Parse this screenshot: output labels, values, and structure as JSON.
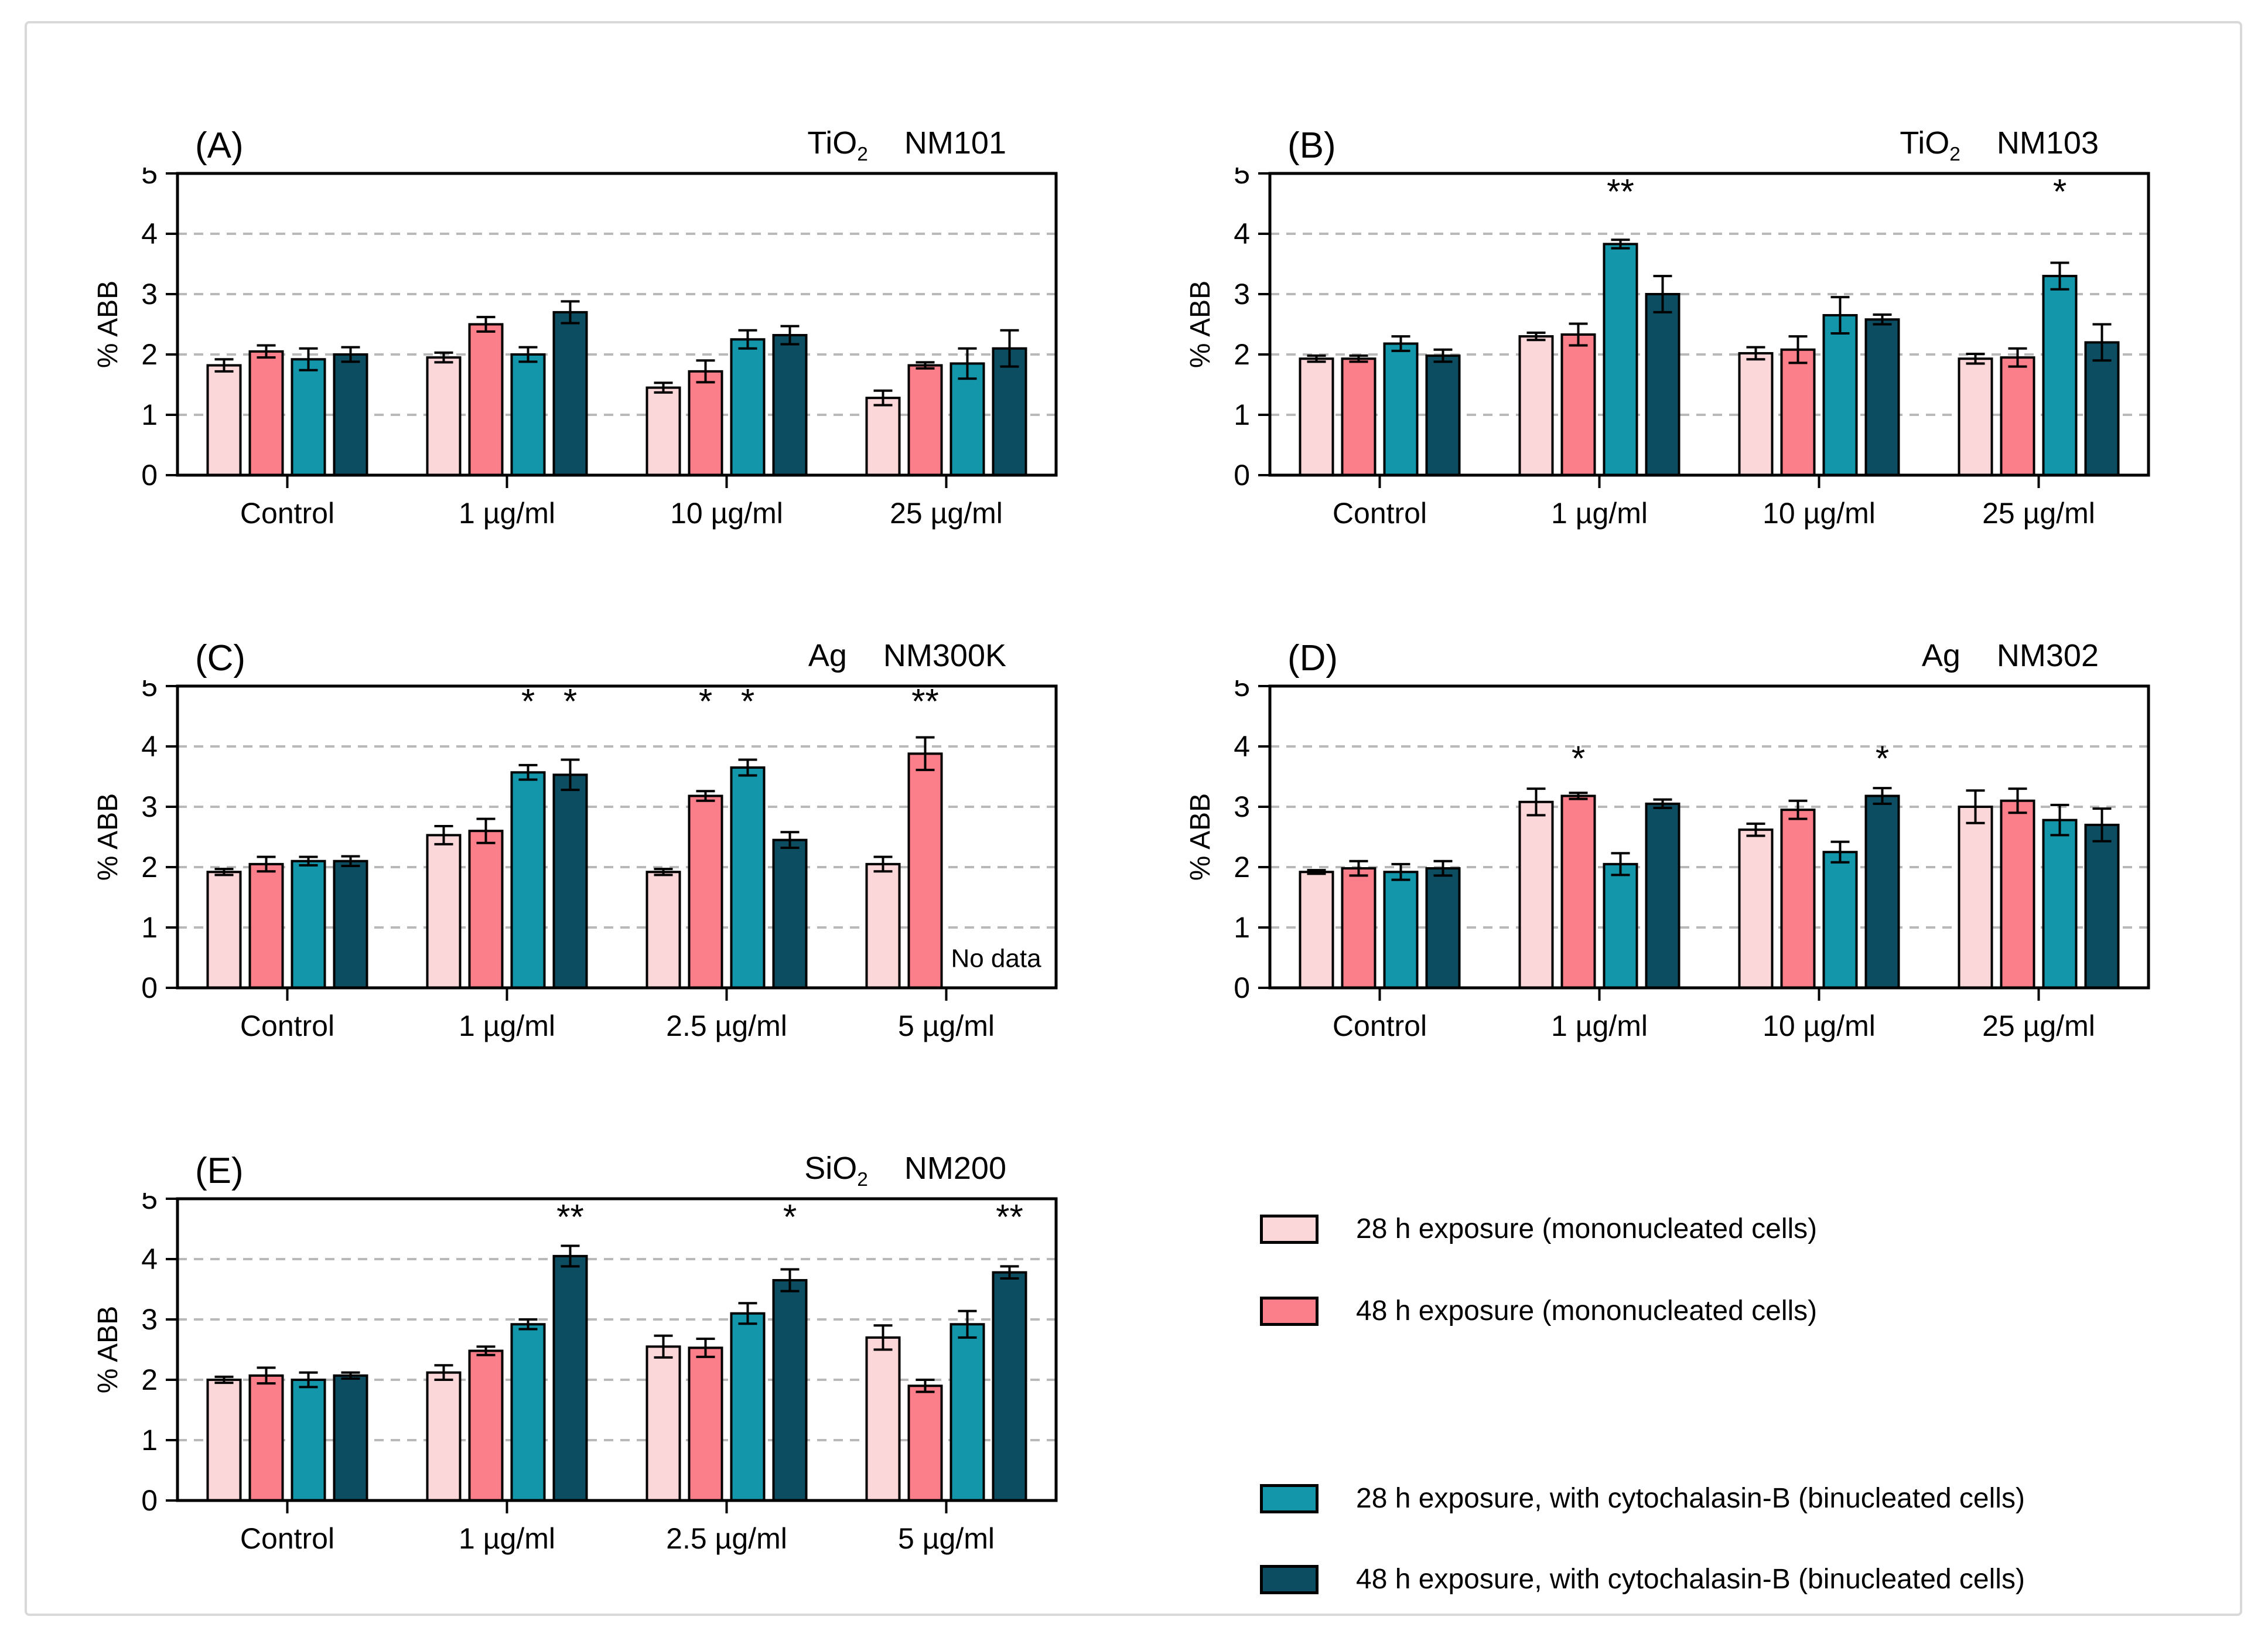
{
  "page": {
    "background": "#ffffff",
    "card_border": "#d9d9d9"
  },
  "legend": {
    "items": [
      {
        "label": "28 h exposure (mononucleated cells)",
        "color": "#FBD7DA"
      },
      {
        "label": "48 h exposure (mononucleated cells)",
        "color": "#FA7F8A"
      },
      {
        "label": "28 h exposure, with cytochalasin-B (binucleated cells)",
        "color": "#1496AA"
      },
      {
        "label": "48 h exposure, with cytochalasin-B (binucleated cells)",
        "color": "#0D4D61"
      }
    ]
  },
  "chart_data": [
    {
      "type": "bar",
      "panel_label": "(A)",
      "material": "TiO",
      "material_sub": "2",
      "code": "NM101",
      "ylabel": "% ABB",
      "ylim": [
        0,
        5
      ],
      "yticks": [
        0,
        1,
        2,
        3,
        4,
        5
      ],
      "grid": "dashed horizontal at 1-4",
      "legend_position": "separate bottom-right cell",
      "categories": [
        "Control",
        "1 µg/ml",
        "10 µg/ml",
        "25 µg/ml"
      ],
      "series": [
        {
          "name": "28 h exposure (mononucleated cells)",
          "values": [
            1.82,
            1.95,
            1.45,
            1.28
          ],
          "errors": [
            0.1,
            0.08,
            0.08,
            0.12
          ]
        },
        {
          "name": "48 h exposure (mononucleated cells)",
          "values": [
            2.05,
            2.5,
            1.72,
            1.82
          ],
          "errors": [
            0.1,
            0.12,
            0.18,
            0.05
          ]
        },
        {
          "name": "28 h exposure, with cytochalasin-B (binucleated cells)",
          "values": [
            1.92,
            2.0,
            2.25,
            1.85
          ],
          "errors": [
            0.18,
            0.12,
            0.15,
            0.25
          ]
        },
        {
          "name": "48 h exposure, with cytochalasin-B (binucleated cells)",
          "values": [
            2.0,
            2.7,
            2.32,
            2.1
          ],
          "errors": [
            0.12,
            0.18,
            0.15,
            0.3
          ]
        }
      ],
      "significance": []
    },
    {
      "type": "bar",
      "panel_label": "(B)",
      "material": "TiO",
      "material_sub": "2",
      "code": "NM103",
      "ylabel": "% ABB",
      "ylim": [
        0,
        5
      ],
      "yticks": [
        0,
        1,
        2,
        3,
        4,
        5
      ],
      "categories": [
        "Control",
        "1 µg/ml",
        "10 µg/ml",
        "25 µg/ml"
      ],
      "series": [
        {
          "name": "28 h exposure (mononucleated cells)",
          "values": [
            1.93,
            2.3,
            2.02,
            1.93
          ],
          "errors": [
            0.05,
            0.06,
            0.1,
            0.08
          ]
        },
        {
          "name": "48 h exposure (mononucleated cells)",
          "values": [
            1.93,
            2.33,
            2.08,
            1.95
          ],
          "errors": [
            0.05,
            0.18,
            0.22,
            0.15
          ]
        },
        {
          "name": "28 h exposure, with cytochalasin-B (binucleated cells)",
          "values": [
            2.18,
            3.83,
            2.65,
            3.3
          ],
          "errors": [
            0.12,
            0.07,
            0.3,
            0.22
          ]
        },
        {
          "name": "48 h exposure, with cytochalasin-B (binucleated cells)",
          "values": [
            1.98,
            3.0,
            2.58,
            2.2
          ],
          "errors": [
            0.1,
            0.3,
            0.08,
            0.3
          ]
        }
      ],
      "significance": [
        {
          "cat": 1,
          "series": 2,
          "label": "**",
          "y": 4.5
        },
        {
          "cat": 3,
          "series": 2,
          "label": "*",
          "y": 4.5
        }
      ]
    },
    {
      "type": "bar",
      "panel_label": "(C)",
      "material": "Ag",
      "material_sub": "",
      "code": "NM300K",
      "ylabel": "% ABB",
      "ylim": [
        0,
        5
      ],
      "yticks": [
        0,
        1,
        2,
        3,
        4,
        5
      ],
      "categories": [
        "Control",
        "1 µg/ml",
        "2.5 µg/ml",
        "5 µg/ml"
      ],
      "series": [
        {
          "name": "28 h exposure (mononucleated cells)",
          "values": [
            1.92,
            2.53,
            1.92,
            2.05
          ],
          "errors": [
            0.05,
            0.15,
            0.05,
            0.12
          ]
        },
        {
          "name": "48 h exposure (mononucleated cells)",
          "values": [
            2.05,
            2.6,
            3.18,
            3.88
          ],
          "errors": [
            0.12,
            0.2,
            0.08,
            0.27
          ]
        },
        {
          "name": "28 h exposure, with cytochalasin-B (binucleated cells)",
          "values": [
            2.1,
            3.57,
            3.65,
            null
          ],
          "errors": [
            0.07,
            0.12,
            0.13,
            null
          ]
        },
        {
          "name": "48 h exposure, with cytochalasin-B (binucleated cells)",
          "values": [
            2.1,
            3.53,
            2.45,
            null
          ],
          "errors": [
            0.08,
            0.25,
            0.13,
            null
          ]
        }
      ],
      "significance": [
        {
          "cat": 1,
          "series": 2,
          "label": "*",
          "y": 4.55
        },
        {
          "cat": 1,
          "series": 3,
          "label": "*",
          "y": 4.55
        },
        {
          "cat": 2,
          "series": 1,
          "label": "*",
          "y": 4.55
        },
        {
          "cat": 2,
          "series": 2,
          "label": "*",
          "y": 4.55
        },
        {
          "cat": 3,
          "series": 1,
          "label": "**",
          "y": 4.55
        }
      ],
      "note": {
        "text": "No data",
        "cat": 3,
        "y": 0.5
      }
    },
    {
      "type": "bar",
      "panel_label": "(D)",
      "material": "Ag",
      "material_sub": "",
      "code": "NM302",
      "ylabel": "% ABB",
      "ylim": [
        0,
        5
      ],
      "yticks": [
        0,
        1,
        2,
        3,
        4,
        5
      ],
      "categories": [
        "Control",
        "1 µg/ml",
        "10 µg/ml",
        "25 µg/ml"
      ],
      "series": [
        {
          "name": "28 h exposure (mononucleated cells)",
          "values": [
            1.92,
            3.08,
            2.62,
            3.0
          ],
          "errors": [
            0.03,
            0.22,
            0.1,
            0.27
          ]
        },
        {
          "name": "48 h exposure (mononucleated cells)",
          "values": [
            1.98,
            3.18,
            2.95,
            3.1
          ],
          "errors": [
            0.12,
            0.05,
            0.15,
            0.2
          ]
        },
        {
          "name": "28 h exposure, with cytochalasin-B (binucleated cells)",
          "values": [
            1.92,
            2.05,
            2.25,
            2.78
          ],
          "errors": [
            0.13,
            0.18,
            0.17,
            0.25
          ]
        },
        {
          "name": "48 h exposure, with cytochalasin-B (binucleated cells)",
          "values": [
            1.98,
            3.05,
            3.18,
            2.7
          ],
          "errors": [
            0.12,
            0.07,
            0.13,
            0.27
          ]
        }
      ],
      "significance": [
        {
          "cat": 1,
          "series": 1,
          "label": "*",
          "y": 3.6
        },
        {
          "cat": 2,
          "series": 3,
          "label": "*",
          "y": 3.6
        }
      ]
    },
    {
      "type": "bar",
      "panel_label": "(E)",
      "material": "SiO",
      "material_sub": "2",
      "code": "NM200",
      "ylabel": "% ABB",
      "ylim": [
        0,
        5
      ],
      "yticks": [
        0,
        1,
        2,
        3,
        4,
        5
      ],
      "categories": [
        "Control",
        "1 µg/ml",
        "2.5 µg/ml",
        "5 µg/ml"
      ],
      "series": [
        {
          "name": "28 h exposure (mononucleated cells)",
          "values": [
            2.0,
            2.12,
            2.55,
            2.7
          ],
          "errors": [
            0.05,
            0.12,
            0.18,
            0.2
          ]
        },
        {
          "name": "48 h exposure (mononucleated cells)",
          "values": [
            2.07,
            2.48,
            2.53,
            1.9
          ],
          "errors": [
            0.13,
            0.07,
            0.15,
            0.1
          ]
        },
        {
          "name": "28 h exposure, with cytochalasin-B (binucleated cells)",
          "values": [
            2.0,
            2.92,
            3.1,
            2.92
          ],
          "errors": [
            0.12,
            0.08,
            0.17,
            0.22
          ]
        },
        {
          "name": "48 h exposure, with cytochalasin-B (binucleated cells)",
          "values": [
            2.07,
            4.05,
            3.65,
            3.78
          ],
          "errors": [
            0.05,
            0.17,
            0.18,
            0.1
          ]
        }
      ],
      "significance": [
        {
          "cat": 1,
          "series": 3,
          "label": "**",
          "y": 4.5
        },
        {
          "cat": 2,
          "series": 3,
          "label": "*",
          "y": 4.5
        },
        {
          "cat": 3,
          "series": 3,
          "label": "**",
          "y": 4.5
        }
      ]
    }
  ]
}
